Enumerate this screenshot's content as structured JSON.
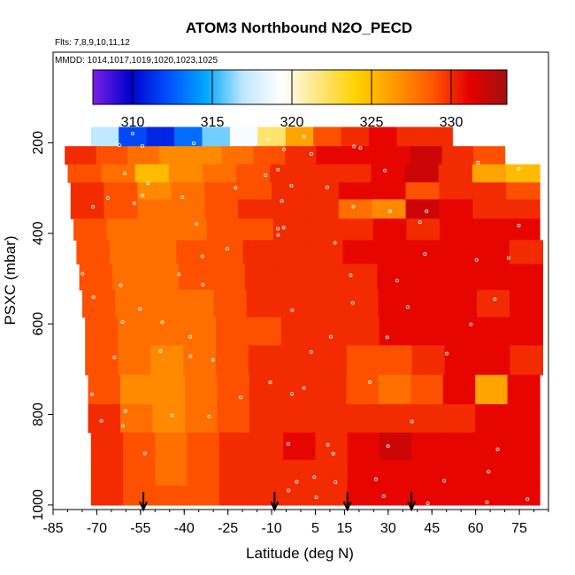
{
  "chart_data": {
    "type": "heatmap",
    "title": "ATOM3 Northbound N2O_PECD",
    "annotations": [
      "Flts: 7,8,9,10,11,12",
      "MMDD: 1014,1017,1019,1020,1023,1025"
    ],
    "xlabel": "Latitude (deg N)",
    "ylabel": "PSXC (mbar)",
    "xlim": [
      -85,
      85
    ],
    "ylim": [
      1010,
      0
    ],
    "y_inverted": true,
    "x_ticks": [
      "-85",
      "-70",
      "-55",
      "-40",
      "-25",
      "-10",
      "5",
      "15",
      "30",
      "45",
      "60",
      "75"
    ],
    "x_tick_values": [
      -85,
      -70,
      -55,
      -40,
      -25,
      -10,
      5,
      15,
      30,
      45,
      60,
      75
    ],
    "y_ticks": [
      "200",
      "400",
      "600",
      "800",
      "1000"
    ],
    "y_tick_values": [
      200,
      400,
      600,
      800,
      1000
    ],
    "colorbar": {
      "range": [
        307.5,
        333.5
      ],
      "ticks": [
        "310",
        "315",
        "320",
        "325",
        "330"
      ],
      "tick_values": [
        310,
        315,
        320,
        325,
        330
      ],
      "colors": [
        "#7a1fe6",
        "#0000cc",
        "#0050ff",
        "#00a8ff",
        "#bfe8ff",
        "#ffffff",
        "#ffe680",
        "#ffd200",
        "#ff9a00",
        "#ff5a00",
        "#e60000",
        "#a01010"
      ]
    },
    "arrows_at_latitude": [
      -54,
      -9,
      16,
      38
    ],
    "layers": [
      {
        "p": 190,
        "lat0": -72,
        "lat1": 52,
        "v": [
          317,
          312,
          311,
          313,
          316,
          319,
          322,
          326,
          329,
          330,
          331,
          330,
          330
        ]
      },
      {
        "p": 225,
        "lat0": -81,
        "lat1": 70,
        "v": [
          330,
          329,
          328,
          327,
          327,
          328,
          329,
          330,
          331,
          331,
          331,
          332,
          330,
          329
        ]
      },
      {
        "p": 270,
        "lat0": -80,
        "lat1": 82,
        "v": [
          329,
          328,
          325,
          327,
          328,
          329,
          330,
          330,
          330,
          331,
          332,
          330,
          326,
          325
        ]
      },
      {
        "p": 305,
        "lat0": -79,
        "lat1": 82,
        "v": [
          330,
          329,
          327,
          328,
          329,
          329,
          330,
          330,
          331,
          331,
          329,
          330,
          330,
          329
        ]
      },
      {
        "p": 345,
        "lat0": -79,
        "lat1": 82,
        "v": [
          330,
          329,
          328,
          328,
          329,
          330,
          330,
          330,
          328,
          327,
          332,
          331,
          330,
          330
        ]
      },
      {
        "p": 390,
        "lat0": -78,
        "lat1": 82,
        "v": [
          329,
          328,
          328,
          328,
          329,
          329,
          330,
          330,
          330,
          331,
          330,
          331,
          331,
          331
        ]
      },
      {
        "p": 440,
        "lat0": -77,
        "lat1": 83,
        "v": [
          329,
          328,
          328,
          329,
          329,
          330,
          330,
          330,
          331,
          331,
          331,
          331,
          331,
          330
        ]
      },
      {
        "p": 495,
        "lat0": -76,
        "lat1": 83,
        "v": [
          329,
          328,
          328,
          329,
          329,
          330,
          330,
          330,
          330,
          331,
          331,
          331,
          331,
          331
        ]
      },
      {
        "p": 555,
        "lat0": -75,
        "lat1": 83,
        "v": [
          329,
          328,
          328,
          328,
          329,
          330,
          330,
          330,
          330,
          331,
          331,
          331,
          330,
          331
        ]
      },
      {
        "p": 615,
        "lat0": -74,
        "lat1": 83,
        "v": [
          329,
          328,
          328,
          328,
          329,
          329,
          330,
          330,
          330,
          331,
          331,
          331,
          331,
          331
        ]
      },
      {
        "p": 680,
        "lat0": -74,
        "lat1": 83,
        "v": [
          329,
          328,
          327,
          328,
          329,
          330,
          330,
          330,
          329,
          329,
          330,
          331,
          331,
          330
        ]
      },
      {
        "p": 745,
        "lat0": -73,
        "lat1": 82,
        "v": [
          329,
          327,
          327,
          328,
          329,
          330,
          330,
          330,
          329,
          328,
          329,
          331,
          326,
          331
        ]
      },
      {
        "p": 810,
        "lat0": -73,
        "lat1": 82,
        "v": [
          330,
          328,
          327,
          328,
          329,
          330,
          330,
          330,
          330,
          330,
          330,
          330,
          331,
          331
        ]
      },
      {
        "p": 870,
        "lat0": -72,
        "lat1": 82,
        "v": [
          330,
          329,
          328,
          329,
          330,
          330,
          331,
          330,
          331,
          332,
          331,
          331,
          331,
          331
        ]
      },
      {
        "p": 930,
        "lat0": -72,
        "lat1": 82,
        "v": [
          330,
          329,
          328,
          329,
          330,
          330,
          330,
          330,
          331,
          331,
          331,
          331,
          331,
          331
        ]
      },
      {
        "p": 985,
        "lat0": -72,
        "lat1": 82,
        "v": [
          330,
          329,
          329,
          329,
          330,
          330,
          330,
          330,
          331,
          331,
          331,
          331,
          331,
          331
        ]
      }
    ]
  }
}
